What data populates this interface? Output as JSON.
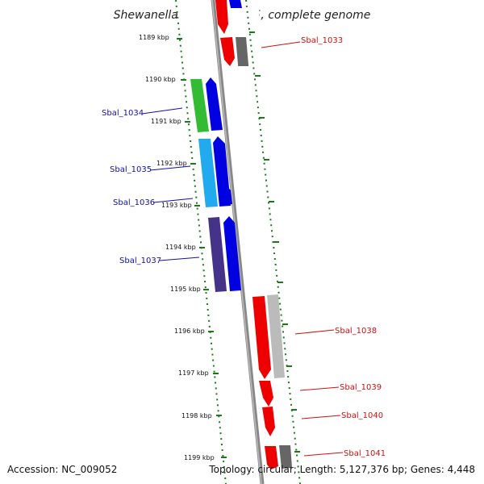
{
  "title": "Shewanella baltica OS155, complete genome",
  "footer": {
    "accession": "Accession: NC_009052",
    "topology": "Topology: circular; Length: 5,127,376 bp; Genes: 4,448"
  },
  "colors": {
    "backbone": "#888888",
    "ticks": "#1a7a1a",
    "blue_arrow": "#0000e0",
    "red_arrow": "#ee0000",
    "green": "#33bb33",
    "cyan": "#22aaee",
    "purple": "#443388",
    "gray_dark": "#666666",
    "gray_light": "#bbbbbb",
    "label_blue": "#1010aa",
    "label_red": "#cc1111"
  },
  "kbp_labels": [
    "1189 kbp",
    "1190 kbp",
    "1191 kbp",
    "1192 kbp",
    "1193 kbp",
    "1194 kbp",
    "1195 kbp",
    "1196 kbp",
    "1197 kbp",
    "1198 kbp",
    "1199 kbp"
  ],
  "left_genes": [
    "Sbal_1034",
    "Sbal_1035",
    "Sbal_1036",
    "Sbal_1037"
  ],
  "right_genes": [
    "Sbal_1033",
    "Sbal_1038",
    "Sbal_1039",
    "Sbal_1040",
    "Sbal_1041"
  ]
}
